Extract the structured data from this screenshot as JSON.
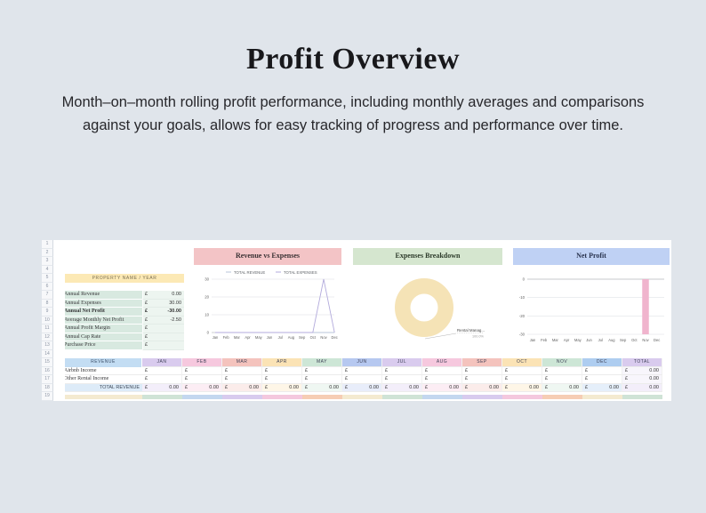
{
  "page": {
    "title": "Profit Overview",
    "subtitle": "Month–on–month rolling profit performance, including monthly averages and comparisons against your goals, allows for easy tracking of progress and performance over time."
  },
  "colors": {
    "page_bg": "#e0e5eb",
    "card_bg": "#ffffff",
    "header_pink": "#f3c4c6",
    "header_green": "#d5e6cf",
    "header_blue": "#bfd1f4",
    "summary_header_bg": "#fce9b5",
    "summary_label_bg": "#d8e9e0",
    "summary_value_bg": "#edf5f0",
    "revenue_header_bg": "#c3ddf3",
    "total_row_label_bg": "#ddebf8",
    "month_colors": [
      "#d9cbee",
      "#f6c8de",
      "#f4c3bd",
      "#fbe3b5",
      "#cde6d6",
      "#b6c8f0",
      "#d9cbee",
      "#f6c8de",
      "#f4c3bd",
      "#fbe3b5",
      "#cde6d6",
      "#aecdf0",
      "#d9cbee"
    ],
    "bottom_strip": [
      "#f4ead0",
      "#cfe3d6",
      "#c3d7ef",
      "#d8cbee",
      "#f4c8de",
      "#f6cdb4",
      "#f4ead0",
      "#cfe3d6",
      "#c3d7ef",
      "#d8cbee",
      "#f4c8de",
      "#f6cdb4",
      "#f4ead0",
      "#cfe3d6"
    ],
    "bar_color": "#f0b4cd",
    "line_revenue": "#b9c6d8",
    "line_expenses": "#b3abdc",
    "donut_color": "#f5e3b6"
  },
  "spreadsheet": {
    "row_numbers": [
      "1",
      "2",
      "3",
      "4",
      "5",
      "6",
      "7",
      "8",
      "9",
      "10",
      "11",
      "12",
      "13",
      "14",
      "15",
      "16",
      "17",
      "18",
      "19"
    ],
    "summary": {
      "header": "PROPERTY NAME / YEAR",
      "rows": [
        {
          "label": "Annual Revenue",
          "currency": "£",
          "value": "0.00",
          "bold": false
        },
        {
          "label": "Annual Expenses",
          "currency": "£",
          "value": "30.00",
          "bold": false
        },
        {
          "label": "Annual Net Profit",
          "currency": "£",
          "value": "-30.00",
          "bold": true
        },
        {
          "label": "Average Monthly Net Profit",
          "currency": "£",
          "value": "-2.50",
          "bold": false
        },
        {
          "label": "Annual Profit Margin",
          "currency": "£",
          "value": "",
          "bold": false
        },
        {
          "label": "Annual Cap Rate",
          "currency": "£",
          "value": "",
          "bold": false
        },
        {
          "label": "Purchase Price",
          "currency": "£",
          "value": "",
          "bold": false
        }
      ]
    },
    "monthly_table": {
      "section_header": "REVENUE",
      "columns": [
        "JAN",
        "FEB",
        "MAR",
        "APR",
        "MAY",
        "JUN",
        "JUL",
        "AUG",
        "SEP",
        "OCT",
        "NOV",
        "DEC",
        "TOTAL"
      ],
      "rows": [
        {
          "label": "Airbnb Income",
          "currency": "£",
          "month_values": [
            "",
            "",
            "",
            "",
            "",
            "",
            "",
            "",
            "",
            "",
            "",
            ""
          ],
          "total": "0.00"
        },
        {
          "label": "Other Rental Income",
          "currency": "£",
          "month_values": [
            "",
            "",
            "",
            "",
            "",
            "",
            "",
            "",
            "",
            "",
            "",
            ""
          ],
          "total": "0.00"
        }
      ],
      "total_row": {
        "label": "TOTAL REVENUE",
        "currency": "£",
        "month_values": [
          "0.00",
          "0.00",
          "0.00",
          "0.00",
          "0.00",
          "0.00",
          "0.00",
          "0.00",
          "0.00",
          "0.00",
          "0.00",
          "0.00"
        ],
        "total": "0.00"
      }
    }
  },
  "chart_data": [
    {
      "type": "line",
      "title": "Revenue vs Expenses",
      "x": [
        "Jan",
        "Feb",
        "Mar",
        "Apr",
        "May",
        "Jun",
        "Jul",
        "Aug",
        "Sep",
        "Oct",
        "Nov",
        "Dec"
      ],
      "series": [
        {
          "name": "TOTAL REVENUE",
          "values": [
            0,
            0,
            0,
            0,
            0,
            0,
            0,
            0,
            0,
            0,
            0,
            0
          ],
          "color": "#b9c6d8"
        },
        {
          "name": "TOTAL EXPENSES",
          "values": [
            0,
            0,
            0,
            0,
            0,
            0,
            0,
            0,
            0,
            0,
            30,
            0
          ],
          "color": "#b3abdc"
        }
      ],
      "ylim": [
        0,
        30
      ],
      "yticks": [
        0,
        10,
        20,
        30
      ],
      "grid": true,
      "legend_position": "top"
    },
    {
      "type": "donut",
      "title": "Expenses Breakdown",
      "slices": [
        {
          "label": "Rental Manag...",
          "pct_label": "100.0%",
          "value": 100,
          "color": "#f5e3b6"
        }
      ]
    },
    {
      "type": "bar",
      "title": "Net Profit",
      "x": [
        "Jan",
        "Feb",
        "Mar",
        "Apr",
        "May",
        "Jun",
        "Jul",
        "Aug",
        "Sep",
        "Oct",
        "Nov",
        "Dec"
      ],
      "values": [
        0,
        0,
        0,
        0,
        0,
        0,
        0,
        0,
        0,
        0,
        -30,
        0
      ],
      "ylim": [
        -30,
        0
      ],
      "yticks": [
        0,
        -10,
        -20,
        -30
      ],
      "grid": true
    }
  ]
}
